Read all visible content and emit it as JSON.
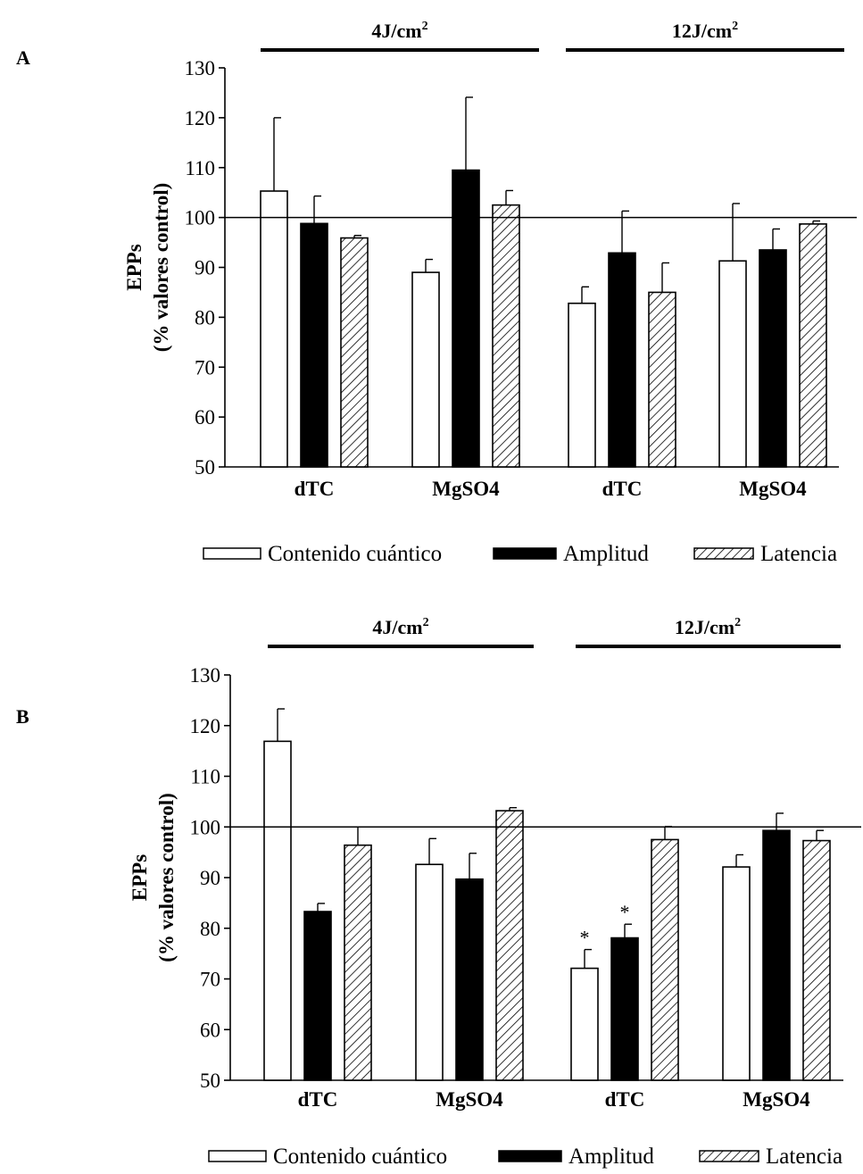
{
  "figure": {
    "legend": {
      "items": [
        {
          "key": "contenido",
          "label": "Contenido cuántico",
          "fill": "white"
        },
        {
          "key": "amplitud",
          "label": "Amplitud",
          "fill": "black"
        },
        {
          "key": "latencia",
          "label": "Latencia",
          "fill": "hatch"
        }
      ]
    },
    "colors": {
      "bar_stroke": "#000000",
      "amplitud_fill": "#000000",
      "contenido_fill": "#ffffff"
    }
  },
  "chart_data": [
    {
      "type": "bar",
      "panel_label": "A",
      "ylabel_line1": "EPPs",
      "ylabel_line2": "(% valores control)",
      "ylim": [
        50,
        130
      ],
      "yticks": [
        50,
        60,
        70,
        80,
        90,
        100,
        110,
        120,
        130
      ],
      "reference_line": 100,
      "group_headers": [
        {
          "label": "4J/cm",
          "sup": "2"
        },
        {
          "label": "12J/cm",
          "sup": "2"
        }
      ],
      "categories": [
        "dTC",
        "MgSO4",
        "dTC",
        "MgSO4"
      ],
      "series": [
        {
          "name": "Contenido cuántico",
          "values": [
            105.3,
            89.0,
            82.8,
            91.3
          ],
          "errors": [
            14.7,
            2.6,
            3.3,
            11.5
          ],
          "annotations": [
            "",
            "",
            "",
            ""
          ]
        },
        {
          "name": "Amplitud",
          "values": [
            98.8,
            109.5,
            92.9,
            93.5
          ],
          "errors": [
            5.5,
            14.6,
            8.4,
            4.2
          ],
          "annotations": [
            "",
            "",
            "",
            ""
          ]
        },
        {
          "name": "Latencia",
          "values": [
            95.9,
            102.5,
            85.0,
            98.7
          ],
          "errors": [
            0.5,
            2.9,
            5.9,
            0.6
          ],
          "annotations": [
            "",
            "",
            "",
            ""
          ]
        }
      ]
    },
    {
      "type": "bar",
      "panel_label": "B",
      "ylabel_line1": "EPPs",
      "ylabel_line2": "(% valores control)",
      "ylim": [
        50,
        130
      ],
      "yticks": [
        50,
        60,
        70,
        80,
        90,
        100,
        110,
        120,
        130
      ],
      "reference_line": 100,
      "group_headers": [
        {
          "label": "4J/cm",
          "sup": "2"
        },
        {
          "label": "12J/cm",
          "sup": "2"
        }
      ],
      "categories": [
        "dTC",
        "MgSO4",
        "dTC",
        "MgSO4"
      ],
      "series": [
        {
          "name": "Contenido cuántico",
          "values": [
            116.9,
            92.6,
            72.1,
            92.1
          ],
          "errors": [
            6.4,
            5.1,
            3.7,
            2.4
          ],
          "annotations": [
            "",
            "",
            "*",
            ""
          ]
        },
        {
          "name": "Amplitud",
          "values": [
            83.3,
            89.7,
            78.1,
            99.3
          ],
          "errors": [
            1.6,
            5.1,
            2.7,
            3.4
          ],
          "annotations": [
            "",
            "",
            "*",
            ""
          ]
        },
        {
          "name": "Latencia",
          "values": [
            96.4,
            103.2,
            97.5,
            97.3
          ],
          "errors": [
            3.6,
            0.6,
            2.6,
            2.0
          ],
          "annotations": [
            "",
            "",
            "",
            ""
          ]
        }
      ]
    }
  ]
}
